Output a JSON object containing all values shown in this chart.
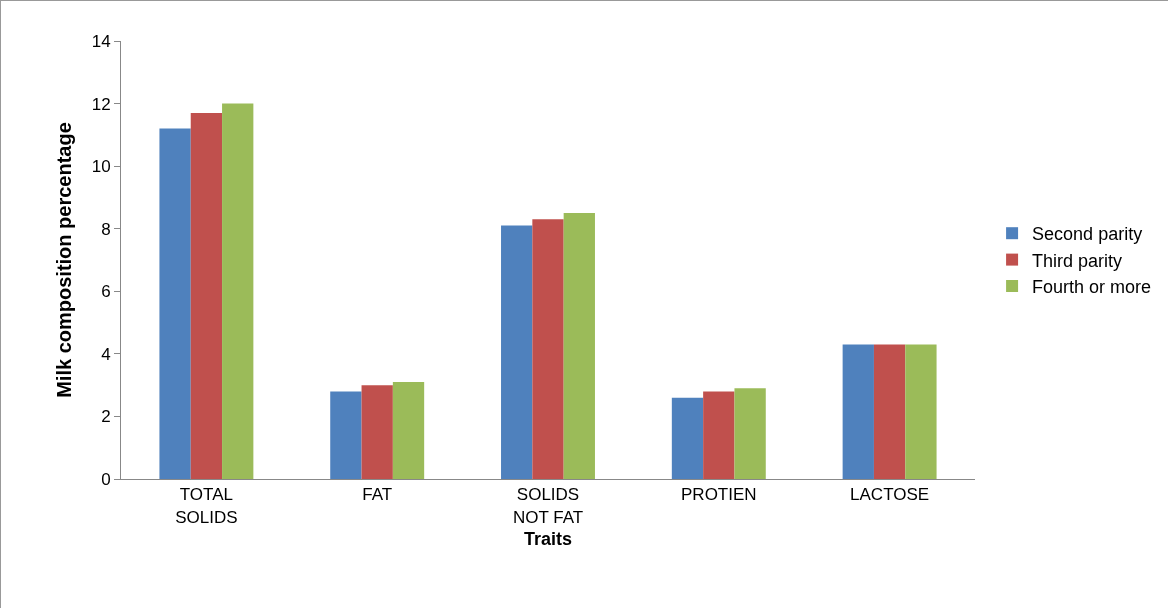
{
  "chart_data": {
    "type": "bar",
    "xlabel": "Traits",
    "ylabel": "Milk composition percentage",
    "categories": [
      "TOTAL\nSOLIDS",
      "FAT",
      "SOLIDS\nNOT FAT",
      "PROTIEN",
      "LACTOSE"
    ],
    "series": [
      {
        "name": "Second parity",
        "color": "#4f81bd",
        "values": [
          11.2,
          2.8,
          8.1,
          2.6,
          4.3
        ]
      },
      {
        "name": "Third parity",
        "color": "#c0504d",
        "values": [
          11.7,
          3.0,
          8.3,
          2.8,
          4.3
        ]
      },
      {
        "name": "Fourth or more",
        "color": "#9bbb59",
        "values": [
          12.0,
          3.1,
          8.5,
          2.9,
          4.3
        ]
      }
    ],
    "ylim": [
      0,
      14
    ],
    "yticks": [
      0,
      2,
      4,
      6,
      8,
      10,
      12,
      14
    ],
    "grid": false,
    "legend": "right"
  }
}
